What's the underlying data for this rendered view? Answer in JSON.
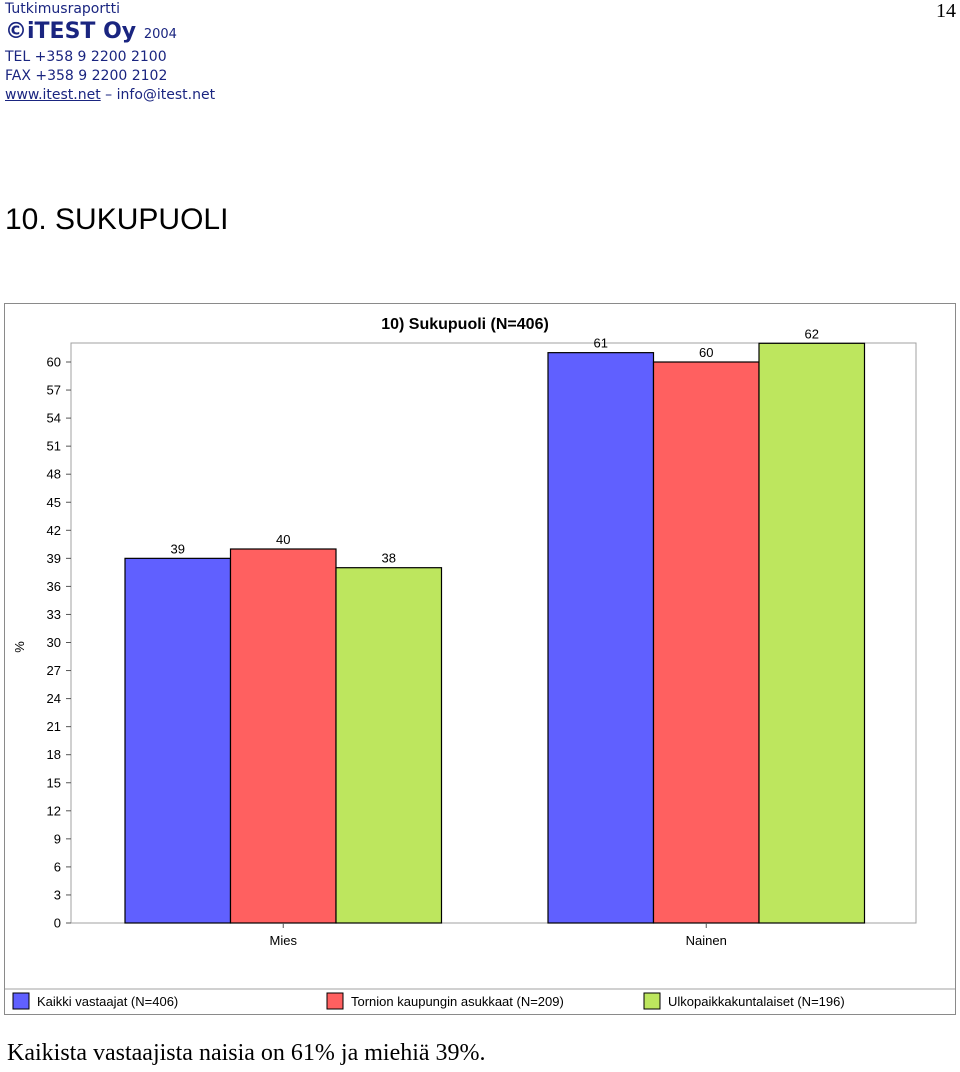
{
  "header": {
    "report_label": "Tutkimusraportti",
    "brand_name": "iTEST Oy",
    "year": "2004",
    "tel": "TEL +358 9 2200 2100",
    "fax": "FAX +358 9 2200 2102",
    "website": "www.itest.net",
    "separator": "–",
    "email": "info@itest.net"
  },
  "page_number": "14",
  "section_title": "10. SUKUPUOLI",
  "summary_text": "Kaikista vastaajista naisia on 61% ja miehiä 39%.",
  "chart_data": {
    "type": "bar",
    "title": "10) Sukupuoli (N=406)",
    "xlabel": "",
    "ylabel": "%",
    "ylim": [
      0,
      63
    ],
    "yticks": [
      0,
      3,
      6,
      9,
      12,
      15,
      18,
      21,
      24,
      27,
      30,
      33,
      36,
      39,
      42,
      45,
      48,
      51,
      54,
      57,
      60
    ],
    "categories": [
      "Mies",
      "Nainen"
    ],
    "series": [
      {
        "name": "Kaikki vastaajat (N=406)",
        "values": [
          39,
          61
        ],
        "color": "#6060ff"
      },
      {
        "name": "Tornion kaupungin asukkaat (N=209)",
        "values": [
          40,
          60
        ],
        "color": "#ff6060"
      },
      {
        "name": "Ulkopaikkakuntalaiset (N=196)",
        "values": [
          38,
          62
        ],
        "color": "#bde65e"
      }
    ],
    "legend_position": "bottom",
    "grid": false
  }
}
